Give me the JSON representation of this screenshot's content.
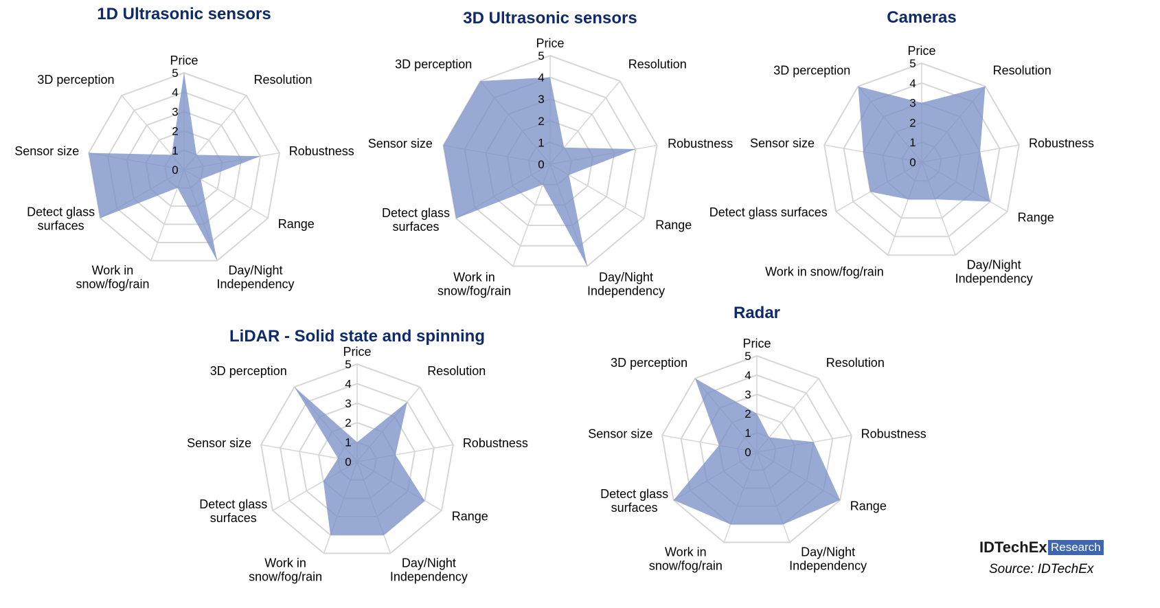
{
  "axes": [
    "Price",
    "Resolution",
    "Robustness",
    "Range",
    "Day/Night Independency",
    "Work in snow/fog/rain",
    "Detect glass surfaces",
    "Sensor size",
    "3D perception"
  ],
  "colors": {
    "fill": "#7b92c6",
    "grid": "#d6d6d6",
    "title": "#0f2a6b",
    "brand": "#3f66b0"
  },
  "chart_data": [
    {
      "type": "radar",
      "title": "1D Ultrasonic sensors",
      "ticks": [
        "0",
        "1",
        "2",
        "3",
        "4",
        "5"
      ],
      "rlim": [
        0,
        5
      ],
      "grid": true,
      "categories": [
        "Price",
        "Resolution",
        "Robustness",
        "Range",
        "Day/Night Independency",
        "Work in snow/fog/rain",
        "Detect glass surfaces",
        "Sensor size",
        "3D perception"
      ],
      "values": [
        5,
        1,
        4,
        1,
        5,
        1,
        5,
        5,
        1
      ]
    },
    {
      "type": "radar",
      "title": "3D Ultrasonic sensors",
      "ticks": [
        "0",
        "1",
        "2",
        "3",
        "4",
        "5"
      ],
      "rlim": [
        0,
        5
      ],
      "grid": true,
      "categories": [
        "Price",
        "Resolution",
        "Robustness",
        "Range",
        "Day/Night Independency",
        "Work in snow/fog/rain",
        "Detect glass surfaces",
        "Sensor size",
        "3D perception"
      ],
      "values": [
        4,
        1,
        4,
        1,
        5,
        1,
        5,
        5,
        5
      ]
    },
    {
      "type": "radar",
      "title": "Cameras",
      "ticks": [
        "0",
        "1",
        "2",
        "3",
        "4",
        "5"
      ],
      "rlim": [
        0,
        5
      ],
      "grid": true,
      "categories": [
        "Price",
        "Resolution",
        "Robustness",
        "Range",
        "Day/Night Independency",
        "Work in snow/fog/rain",
        "Detect glass surfaces",
        "Sensor size",
        "3D perception"
      ],
      "values": [
        3,
        5,
        3,
        4,
        2,
        2,
        3,
        3,
        5
      ]
    },
    {
      "type": "radar",
      "title": "LiDAR - Solid state and spinning",
      "ticks": [
        "0",
        "1",
        "2",
        "3",
        "4",
        "5"
      ],
      "rlim": [
        0,
        5
      ],
      "grid": true,
      "categories": [
        "Price",
        "Resolution",
        "Robustness",
        "Range",
        "Day/Night Independency",
        "Work in snow/fog/rain",
        "Detect glass surfaces",
        "Sensor size",
        "3D perception"
      ],
      "values": [
        1,
        4,
        2,
        4,
        4,
        4,
        2,
        1,
        5
      ]
    },
    {
      "type": "radar",
      "title": "Radar",
      "ticks": [
        "0",
        "1",
        "2",
        "3",
        "4",
        "5"
      ],
      "rlim": [
        0,
        5
      ],
      "grid": true,
      "categories": [
        "Price",
        "Resolution",
        "Robustness",
        "Range",
        "Day/Night Independency",
        "Work in snow/fog/rain",
        "Detect glass surfaces",
        "Sensor size",
        "3D perception"
      ],
      "values": [
        2,
        1,
        3,
        5,
        4,
        4,
        5,
        2,
        5
      ]
    }
  ],
  "brand": {
    "name": "IDTechEx",
    "tag": "Research",
    "source": "Source: IDTechEx"
  }
}
